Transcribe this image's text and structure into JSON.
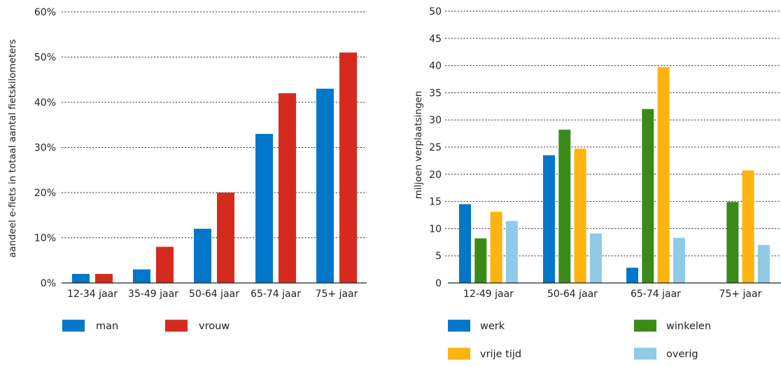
{
  "chart_data": [
    {
      "type": "bar",
      "title": "",
      "xlabel": "",
      "ylabel": "aandeel e-fiets in totaal aantal fietskilometers",
      "ylim": [
        0,
        60
      ],
      "yticks": [
        0,
        10,
        20,
        30,
        40,
        50,
        60
      ],
      "ytick_labels": [
        "0%",
        "10%",
        "20%",
        "30%",
        "40%",
        "50%",
        "60%"
      ],
      "grid": true,
      "legend_position": "bottom",
      "categories": [
        "12-34 jaar",
        "35-49 jaar",
        "50-64 jaar",
        "65-74 jaar",
        "75+ jaar"
      ],
      "series": [
        {
          "name": "man",
          "color": "#0077c8",
          "values": [
            2,
            3,
            12,
            33,
            43
          ]
        },
        {
          "name": "vrouw",
          "color": "#d52b1e",
          "values": [
            2,
            8,
            20,
            42,
            51
          ]
        }
      ]
    },
    {
      "type": "bar",
      "title": "",
      "xlabel": "",
      "ylabel": "miljoen verplaatsingen",
      "ylim": [
        0,
        50
      ],
      "yticks": [
        0,
        5,
        10,
        15,
        20,
        25,
        30,
        35,
        40,
        45,
        50
      ],
      "ytick_labels": [
        "0",
        "5",
        "10",
        "15",
        "20",
        "25",
        "30",
        "35",
        "40",
        "45",
        "50"
      ],
      "grid": true,
      "legend_position": "bottom",
      "categories": [
        "12-49 jaar",
        "50-64 jaar",
        "65-74 jaar",
        "75+ jaar"
      ],
      "series": [
        {
          "name": "werk",
          "color": "#0077c8",
          "values": [
            14.5,
            23.5,
            2.8,
            0
          ]
        },
        {
          "name": "winkelen",
          "color": "#3a8a18",
          "values": [
            8.2,
            28.2,
            32,
            14.9
          ]
        },
        {
          "name": "vrije tijd",
          "color": "#ffb30f",
          "values": [
            13.1,
            24.7,
            39.7,
            20.7
          ]
        },
        {
          "name": "overig",
          "color": "#8fcae7",
          "values": [
            11.4,
            9.1,
            8.3,
            7
          ]
        }
      ]
    }
  ]
}
